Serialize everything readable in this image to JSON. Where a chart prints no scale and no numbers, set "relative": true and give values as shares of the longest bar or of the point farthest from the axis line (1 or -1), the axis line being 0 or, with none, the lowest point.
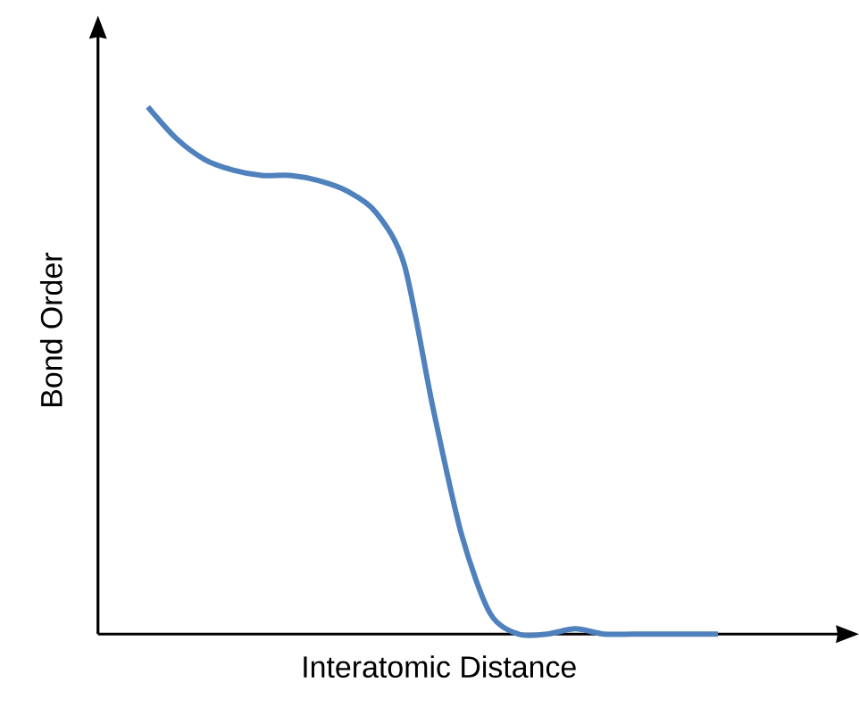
{
  "chart_data": {
    "type": "line",
    "xlabel": "Interatomic Distance",
    "ylabel": "Bond Order",
    "relative": true,
    "categories": [
      null,
      null,
      null,
      null,
      null,
      null,
      null,
      null,
      null,
      null,
      null,
      null,
      null,
      null,
      null,
      null,
      null,
      null,
      null,
      null,
      null
    ],
    "color": "#4f81bd",
    "values": [
      1.0,
      0.94,
      0.9,
      0.88,
      0.87,
      0.87,
      0.86,
      0.84,
      0.8,
      0.7,
      0.43,
      0.19,
      0.04,
      0.0,
      0.0,
      0.01,
      0.0,
      0.0,
      0.0,
      0.0,
      0.0
    ]
  }
}
